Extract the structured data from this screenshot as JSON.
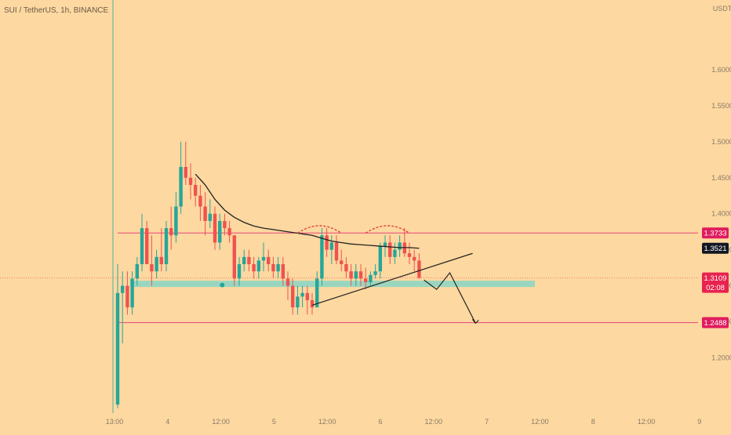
{
  "header": {
    "symbol_text": "SUI / TetherUS, 1h, BINANCE",
    "currency": "USDT"
  },
  "colors": {
    "background": "#fdd8a0",
    "up": "#26a69a",
    "down": "#ef5350",
    "resistance": "#e8457a",
    "support_zone": "#8fd6c2",
    "ema": "#222222",
    "trend": "#222222",
    "arc": "#e0433f",
    "tag_resistance": "#e01b5e",
    "tag_ema": "#131722",
    "tag_price": "#e8234f"
  },
  "chart_data": {
    "type": "candlestick",
    "x_labels": [
      "13:00",
      "4",
      "12:00",
      "5",
      "12:00",
      "6",
      "12:00",
      "7",
      "12:00",
      "8",
      "12:00",
      "9"
    ],
    "y_ticks": [
      1.2,
      1.25,
      1.3,
      1.35,
      1.4,
      1.45,
      1.5,
      1.55,
      1.6
    ],
    "y_tick_labels": [
      "1.2000",
      "1.2500",
      "1.3000",
      "1.3500",
      "1.4000",
      "1.4500",
      "1.5000",
      "1.5500",
      "1.6000"
    ],
    "ylim": [
      1.12,
      1.675
    ],
    "candles": [
      [
        1.135,
        1.33,
        1.13,
        1.29
      ],
      [
        1.29,
        1.32,
        1.22,
        1.3
      ],
      [
        1.3,
        1.32,
        1.26,
        1.27
      ],
      [
        1.27,
        1.32,
        1.26,
        1.31
      ],
      [
        1.31,
        1.34,
        1.3,
        1.33
      ],
      [
        1.33,
        1.4,
        1.32,
        1.38
      ],
      [
        1.38,
        1.39,
        1.33,
        1.33
      ],
      [
        1.33,
        1.37,
        1.3,
        1.32
      ],
      [
        1.32,
        1.35,
        1.31,
        1.34
      ],
      [
        1.34,
        1.38,
        1.32,
        1.33
      ],
      [
        1.33,
        1.39,
        1.32,
        1.38
      ],
      [
        1.38,
        1.41,
        1.35,
        1.37
      ],
      [
        1.37,
        1.43,
        1.36,
        1.41
      ],
      [
        1.41,
        1.5,
        1.4,
        1.465
      ],
      [
        1.465,
        1.5,
        1.44,
        1.45
      ],
      [
        1.45,
        1.47,
        1.42,
        1.44
      ],
      [
        1.44,
        1.45,
        1.41,
        1.425
      ],
      [
        1.425,
        1.44,
        1.39,
        1.41
      ],
      [
        1.41,
        1.43,
        1.37,
        1.39
      ],
      [
        1.39,
        1.42,
        1.38,
        1.4
      ],
      [
        1.4,
        1.41,
        1.35,
        1.36
      ],
      [
        1.36,
        1.4,
        1.35,
        1.39
      ],
      [
        1.39,
        1.4,
        1.37,
        1.38
      ],
      [
        1.38,
        1.39,
        1.36,
        1.37
      ],
      [
        1.37,
        1.37,
        1.3,
        1.31
      ],
      [
        1.31,
        1.34,
        1.3,
        1.33
      ],
      [
        1.33,
        1.35,
        1.32,
        1.34
      ],
      [
        1.34,
        1.35,
        1.32,
        1.33
      ],
      [
        1.33,
        1.34,
        1.31,
        1.32
      ],
      [
        1.32,
        1.34,
        1.31,
        1.335
      ],
      [
        1.335,
        1.36,
        1.32,
        1.34
      ],
      [
        1.34,
        1.35,
        1.32,
        1.33
      ],
      [
        1.33,
        1.34,
        1.31,
        1.32
      ],
      [
        1.32,
        1.34,
        1.31,
        1.33
      ],
      [
        1.33,
        1.34,
        1.3,
        1.31
      ],
      [
        1.31,
        1.32,
        1.28,
        1.3
      ],
      [
        1.3,
        1.31,
        1.26,
        1.27
      ],
      [
        1.27,
        1.3,
        1.26,
        1.285
      ],
      [
        1.285,
        1.3,
        1.27,
        1.29
      ],
      [
        1.29,
        1.3,
        1.26,
        1.28
      ],
      [
        1.28,
        1.29,
        1.26,
        1.27
      ],
      [
        1.27,
        1.32,
        1.27,
        1.31
      ],
      [
        1.31,
        1.38,
        1.3,
        1.37
      ],
      [
        1.37,
        1.38,
        1.34,
        1.35
      ],
      [
        1.35,
        1.37,
        1.33,
        1.36
      ],
      [
        1.36,
        1.37,
        1.33,
        1.335
      ],
      [
        1.335,
        1.35,
        1.32,
        1.33
      ],
      [
        1.33,
        1.34,
        1.31,
        1.32
      ],
      [
        1.32,
        1.33,
        1.3,
        1.31
      ],
      [
        1.31,
        1.33,
        1.3,
        1.32
      ],
      [
        1.32,
        1.33,
        1.3,
        1.31
      ],
      [
        1.31,
        1.325,
        1.295,
        1.305
      ],
      [
        1.305,
        1.32,
        1.3,
        1.315
      ],
      [
        1.315,
        1.33,
        1.31,
        1.32
      ],
      [
        1.32,
        1.36,
        1.31,
        1.355
      ],
      [
        1.355,
        1.37,
        1.34,
        1.36
      ],
      [
        1.36,
        1.37,
        1.33,
        1.34
      ],
      [
        1.34,
        1.36,
        1.33,
        1.35
      ],
      [
        1.35,
        1.37,
        1.34,
        1.36
      ],
      [
        1.36,
        1.38,
        1.34,
        1.345
      ],
      [
        1.345,
        1.36,
        1.33,
        1.34
      ],
      [
        1.34,
        1.35,
        1.32,
        1.335
      ],
      [
        1.335,
        1.345,
        1.31,
        1.3109
      ]
    ],
    "ema": [
      [
        16,
        1.455
      ],
      [
        18,
        1.44
      ],
      [
        20,
        1.42
      ],
      [
        22,
        1.405
      ],
      [
        24,
        1.395
      ],
      [
        26,
        1.388
      ],
      [
        28,
        1.383
      ],
      [
        30,
        1.38
      ],
      [
        32,
        1.378
      ],
      [
        34,
        1.376
      ],
      [
        36,
        1.374
      ],
      [
        38,
        1.372
      ],
      [
        40,
        1.37
      ],
      [
        42,
        1.366
      ],
      [
        44,
        1.362
      ],
      [
        46,
        1.36
      ],
      [
        48,
        1.358
      ],
      [
        50,
        1.357
      ],
      [
        52,
        1.356
      ],
      [
        54,
        1.355
      ],
      [
        56,
        1.354
      ],
      [
        58,
        1.353
      ],
      [
        60,
        1.353
      ],
      [
        62,
        1.3521
      ]
    ],
    "resistance": 1.3733,
    "support_line": 1.2488,
    "support_zone": [
      1.3,
      1.307
    ],
    "trendline": [
      [
        40,
        1.273
      ],
      [
        73,
        1.345
      ]
    ],
    "projection": [
      [
        63,
        1.308
      ],
      [
        65.6,
        1.295
      ],
      [
        68.3,
        1.318
      ],
      [
        73.6,
        1.248
      ]
    ],
    "arcs": [
      [
        37,
        46,
        1.373,
        1.385
      ],
      [
        51,
        60,
        1.373,
        1.385
      ]
    ],
    "marker": [
      21.5,
      1.301
    ],
    "price_tags": [
      {
        "label": "1.3733",
        "value": 1.3733,
        "kind": "resistance"
      },
      {
        "label": "1.3521",
        "value": 1.3521,
        "kind": "ema"
      },
      {
        "label": "1.3109",
        "value": 1.3109,
        "kind": "price",
        "sub": "02:08"
      },
      {
        "label": "1.2488",
        "value": 1.2488,
        "kind": "resistance"
      }
    ]
  }
}
